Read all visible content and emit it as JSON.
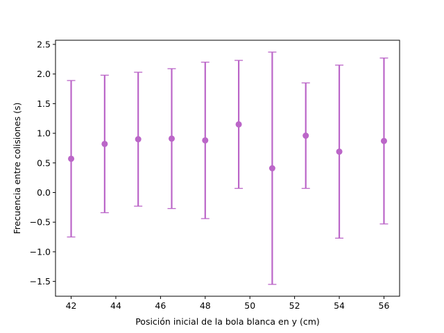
{
  "chart_data": {
    "type": "scatter",
    "title": "",
    "xlabel": "Posición inicial de la bola blanca en y (cm)",
    "ylabel": "Frecuencia entre colisiones (s)",
    "xlim": [
      41.3,
      56.7
    ],
    "ylim": [
      -1.75,
      2.57
    ],
    "xticks": [
      42,
      44,
      46,
      48,
      50,
      52,
      54,
      56
    ],
    "yticks": [
      -1.5,
      -1.0,
      -0.5,
      0.0,
      0.5,
      1.0,
      1.5,
      2.0,
      2.5
    ],
    "xtick_labels": [
      "42",
      "44",
      "46",
      "48",
      "50",
      "52",
      "54",
      "56"
    ],
    "ytick_labels": [
      "−1.5",
      "−1.0",
      "−0.5",
      "0.0",
      "0.5",
      "1.0",
      "1.5",
      "2.0",
      "2.5"
    ],
    "grid": false,
    "color": "#bb66c8",
    "series": [
      {
        "x": [
          42,
          43.5,
          45,
          46.5,
          48,
          49.5,
          51,
          52.5,
          54,
          56
        ],
        "y": [
          0.57,
          0.82,
          0.9,
          0.91,
          0.88,
          1.15,
          0.41,
          0.96,
          0.69,
          0.87
        ],
        "err": [
          1.32,
          1.16,
          1.13,
          1.18,
          1.32,
          1.08,
          1.96,
          0.89,
          1.46,
          1.4
        ]
      }
    ]
  }
}
